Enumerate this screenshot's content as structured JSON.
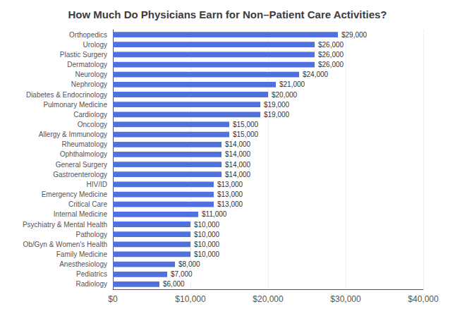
{
  "chart_data": {
    "type": "bar",
    "orientation": "horizontal",
    "title": "How Much Do Physicians Earn for Non–Patient Care Activities?",
    "categories": [
      "Radiology",
      "Pediatrics",
      "Anesthesiology",
      "Family Medicine",
      "Ob/Gyn & Women's Health",
      "Pathology",
      "Psychiatry & Mental Health",
      "Internal Medicine",
      "Critical Care",
      "Emergency Medicine",
      "HIV/ID",
      "Gastroenterology",
      "General Surgery",
      "Ophthalmology",
      "Rheumatology",
      "Allergy & Immunology",
      "Oncology",
      "Cardiology",
      "Pulmonary Medicine",
      "Diabetes & Endocrinology",
      "Nephrology",
      "Neurology",
      "Dermatology",
      "Plastic Surgery",
      "Urology",
      "Orthopedics"
    ],
    "values": [
      6000,
      7000,
      8000,
      10000,
      10000,
      10000,
      10000,
      11000,
      13000,
      13000,
      13000,
      14000,
      14000,
      14000,
      14000,
      15000,
      15000,
      19000,
      19000,
      20000,
      21000,
      24000,
      26000,
      26000,
      26000,
      29000
    ],
    "value_labels": [
      "$6,000",
      "$7,000",
      "$8,000",
      "$10,000",
      "$10,000",
      "$10,000",
      "$10,000",
      "$11,000",
      "$13,000",
      "$13,000",
      "$13,000",
      "$14,000",
      "$14,000",
      "$14,000",
      "$14,000",
      "$15,000",
      "$15,000",
      "$19,000",
      "$19,000",
      "$20,000",
      "$21,000",
      "$24,000",
      "$26,000",
      "$26,000",
      "$26,000",
      "$29,000"
    ],
    "data_labels": true,
    "xlim": [
      0,
      40000
    ],
    "xticks": [
      {
        "value": 0,
        "label": "$0"
      },
      {
        "value": 10000,
        "label": "$10,000"
      },
      {
        "value": 20000,
        "label": "$20,000"
      },
      {
        "value": 30000,
        "label": "$30,000"
      },
      {
        "value": 40000,
        "label": "$40,000"
      }
    ],
    "grid": true
  }
}
